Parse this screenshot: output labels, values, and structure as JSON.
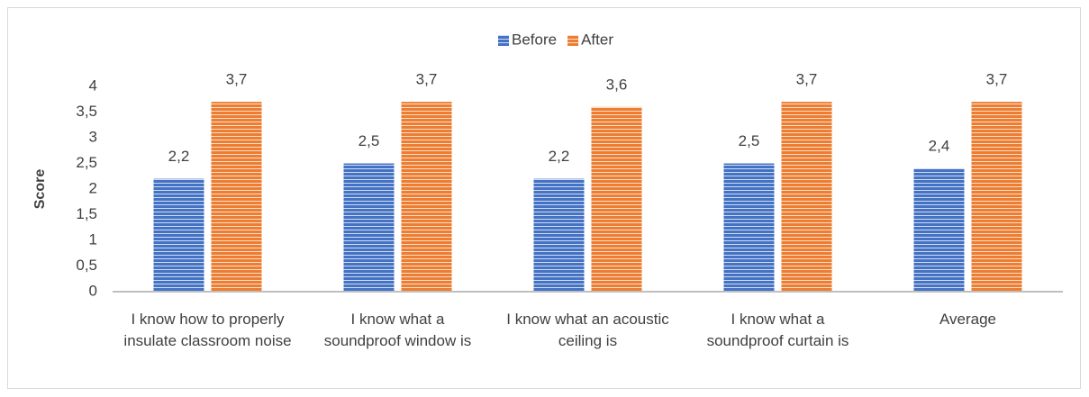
{
  "chart_data": {
    "type": "bar",
    "y_label": "Score",
    "categories": [
      "I know how to properly insulate classroom noise",
      "I know what a soundproof window is",
      "I know what an acoustic ceiling is",
      "I know what a soundproof curtain is",
      "Average"
    ],
    "series": [
      {
        "name": "Before",
        "color": "#4472c4",
        "values": [
          2.2,
          2.5,
          2.2,
          2.5,
          2.4
        ],
        "value_labels": [
          "2,2",
          "2,5",
          "2,2",
          "2,5",
          "2,4"
        ]
      },
      {
        "name": "After",
        "color": "#ed7d31",
        "values": [
          3.7,
          3.7,
          3.6,
          3.7,
          3.7
        ],
        "value_labels": [
          "3,7",
          "3,7",
          "3,6",
          "3,7",
          "3,7"
        ]
      }
    ],
    "ylim": [
      0,
      4
    ],
    "yticks": [
      0,
      {
        "value": 0.5,
        "label": "0,5"
      },
      1,
      {
        "value": 1.5,
        "label": "1,5"
      },
      2,
      {
        "value": 2.5,
        "label": "2,5"
      },
      3,
      {
        "value": 3.5,
        "label": "3,5"
      },
      4
    ],
    "legend": "top"
  }
}
